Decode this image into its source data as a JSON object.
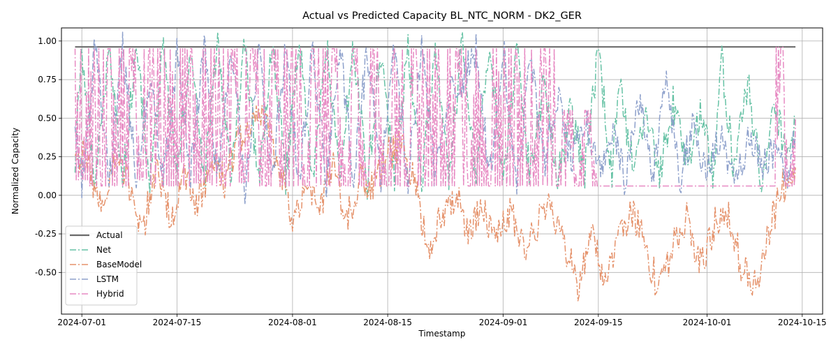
{
  "chart_data": {
    "type": "line",
    "title": "Actual vs Predicted Capacity BL_NTC_NORM - DK2_GER",
    "xlabel": "Timestamp",
    "ylabel": "Normalized Capacity",
    "x_range": [
      "2024-06-28",
      "2024-10-18"
    ],
    "ylim": [
      -0.77,
      1.085
    ],
    "x_ticks": [
      "2024-07-01",
      "2024-07-15",
      "2024-08-01",
      "2024-08-15",
      "2024-09-01",
      "2024-09-15",
      "2024-10-01",
      "2024-10-15"
    ],
    "y_ticks": [
      -0.5,
      -0.25,
      0.0,
      0.25,
      0.5,
      0.75,
      1.0
    ],
    "grid": true,
    "legend_position": "lower-left",
    "series": [
      {
        "name": "Actual",
        "style": "solid",
        "color": "#6b6b6b",
        "points": [
          [
            "2024-06-30",
            0.962
          ],
          [
            "2024-10-14",
            0.962
          ]
        ]
      },
      {
        "name": "Net",
        "style": "dashdot",
        "color": "#66c2a5",
        "points": [
          [
            "2024-06-30",
            0.2
          ],
          [
            "2024-07-01",
            0.95
          ],
          [
            "2024-07-03",
            0.1
          ],
          [
            "2024-07-05",
            0.98
          ],
          [
            "2024-07-07",
            0.08
          ],
          [
            "2024-07-09",
            0.97
          ],
          [
            "2024-07-11",
            0.1
          ],
          [
            "2024-07-13",
            0.95
          ],
          [
            "2024-07-15",
            0.1
          ],
          [
            "2024-07-17",
            0.92
          ],
          [
            "2024-07-19",
            0.08
          ],
          [
            "2024-07-21",
            0.99
          ],
          [
            "2024-07-23",
            0.1
          ],
          [
            "2024-07-25",
            0.97
          ],
          [
            "2024-07-27",
            0.08
          ],
          [
            "2024-07-29",
            0.97
          ],
          [
            "2024-07-31",
            0.12
          ],
          [
            "2024-08-02",
            1.0
          ],
          [
            "2024-08-04",
            0.08
          ],
          [
            "2024-08-06",
            0.97
          ],
          [
            "2024-08-08",
            0.1
          ],
          [
            "2024-08-10",
            0.97
          ],
          [
            "2024-08-12",
            0.08
          ],
          [
            "2024-08-14",
            0.95
          ],
          [
            "2024-08-16",
            0.1
          ],
          [
            "2024-08-18",
            0.95
          ],
          [
            "2024-08-20",
            0.1
          ],
          [
            "2024-08-22",
            0.9
          ],
          [
            "2024-08-24",
            0.08
          ],
          [
            "2024-08-26",
            1.0
          ],
          [
            "2024-08-28",
            0.1
          ],
          [
            "2024-08-30",
            0.95
          ],
          [
            "2024-09-01",
            0.08
          ],
          [
            "2024-09-03",
            0.9
          ],
          [
            "2024-09-05",
            0.1
          ],
          [
            "2024-09-07",
            0.75
          ],
          [
            "2024-09-09",
            0.1
          ],
          [
            "2024-09-11",
            0.55
          ],
          [
            "2024-09-13",
            0.15
          ],
          [
            "2024-09-15",
            0.95
          ],
          [
            "2024-09-17",
            0.1
          ],
          [
            "2024-09-18",
            0.75
          ],
          [
            "2024-09-20",
            0.2
          ],
          [
            "2024-09-22",
            0.55
          ],
          [
            "2024-09-24",
            0.15
          ],
          [
            "2024-09-26",
            0.6
          ],
          [
            "2024-09-28",
            0.2
          ],
          [
            "2024-09-30",
            0.55
          ],
          [
            "2024-10-02",
            0.1
          ],
          [
            "2024-10-03",
            0.92
          ],
          [
            "2024-10-05",
            0.15
          ],
          [
            "2024-10-07",
            0.75
          ],
          [
            "2024-10-09",
            0.1
          ],
          [
            "2024-10-11",
            0.55
          ],
          [
            "2024-10-13",
            0.2
          ],
          [
            "2024-10-14",
            0.45
          ]
        ]
      },
      {
        "name": "BaseModel",
        "style": "dashdot",
        "color": "#e5926b",
        "points": [
          [
            "2024-06-30",
            0.3
          ],
          [
            "2024-07-02",
            0.2
          ],
          [
            "2024-07-04",
            -0.1
          ],
          [
            "2024-07-06",
            0.25
          ],
          [
            "2024-07-08",
            0.05
          ],
          [
            "2024-07-10",
            -0.22
          ],
          [
            "2024-07-12",
            0.2
          ],
          [
            "2024-07-14",
            -0.15
          ],
          [
            "2024-07-16",
            0.1
          ],
          [
            "2024-07-18",
            -0.05
          ],
          [
            "2024-07-20",
            0.2
          ],
          [
            "2024-07-22",
            0.1
          ],
          [
            "2024-07-24",
            0.35
          ],
          [
            "2024-07-26",
            0.45
          ],
          [
            "2024-07-28",
            0.55
          ],
          [
            "2024-07-30",
            0.15
          ],
          [
            "2024-08-01",
            -0.15
          ],
          [
            "2024-08-03",
            0.1
          ],
          [
            "2024-08-05",
            -0.1
          ],
          [
            "2024-08-07",
            0.2
          ],
          [
            "2024-08-09",
            -0.15
          ],
          [
            "2024-08-11",
            0.1
          ],
          [
            "2024-08-13",
            0.05
          ],
          [
            "2024-08-15",
            0.25
          ],
          [
            "2024-08-17",
            0.35
          ],
          [
            "2024-08-19",
            0.05
          ],
          [
            "2024-08-21",
            -0.35
          ],
          [
            "2024-08-23",
            -0.1
          ],
          [
            "2024-08-25",
            0.0
          ],
          [
            "2024-08-27",
            -0.25
          ],
          [
            "2024-08-29",
            -0.05
          ],
          [
            "2024-08-31",
            -0.3
          ],
          [
            "2024-09-02",
            -0.1
          ],
          [
            "2024-09-04",
            -0.35
          ],
          [
            "2024-09-06",
            -0.2
          ],
          [
            "2024-09-08",
            -0.05
          ],
          [
            "2024-09-10",
            -0.3
          ],
          [
            "2024-09-12",
            -0.62
          ],
          [
            "2024-09-14",
            -0.2
          ],
          [
            "2024-09-16",
            -0.55
          ],
          [
            "2024-09-18",
            -0.3
          ],
          [
            "2024-09-20",
            -0.1
          ],
          [
            "2024-09-22",
            -0.35
          ],
          [
            "2024-09-24",
            -0.62
          ],
          [
            "2024-09-26",
            -0.3
          ],
          [
            "2024-09-28",
            -0.15
          ],
          [
            "2024-09-30",
            -0.45
          ],
          [
            "2024-10-02",
            -0.2
          ],
          [
            "2024-10-04",
            -0.1
          ],
          [
            "2024-10-06",
            -0.45
          ],
          [
            "2024-10-08",
            -0.6
          ],
          [
            "2024-10-10",
            -0.25
          ],
          [
            "2024-10-12",
            0.05
          ],
          [
            "2024-10-14",
            0.18
          ]
        ]
      },
      {
        "name": "LSTM",
        "style": "dashdot",
        "color": "#8da0cb",
        "points": [
          [
            "2024-06-30",
            0.48
          ],
          [
            "2024-07-01",
            0.08
          ],
          [
            "2024-07-03",
            0.97
          ],
          [
            "2024-07-05",
            0.1
          ],
          [
            "2024-07-07",
            0.95
          ],
          [
            "2024-07-09",
            0.12
          ],
          [
            "2024-07-11",
            0.8
          ],
          [
            "2024-07-13",
            0.1
          ],
          [
            "2024-07-15",
            0.9
          ],
          [
            "2024-07-17",
            0.15
          ],
          [
            "2024-07-19",
            0.95
          ],
          [
            "2024-07-21",
            0.1
          ],
          [
            "2024-07-23",
            0.95
          ],
          [
            "2024-07-25",
            0.0
          ],
          [
            "2024-07-27",
            0.95
          ],
          [
            "2024-07-29",
            0.1
          ],
          [
            "2024-07-31",
            0.97
          ],
          [
            "2024-08-02",
            0.1
          ],
          [
            "2024-08-04",
            0.95
          ],
          [
            "2024-08-06",
            0.08
          ],
          [
            "2024-08-08",
            0.97
          ],
          [
            "2024-08-10",
            0.1
          ],
          [
            "2024-08-12",
            0.95
          ],
          [
            "2024-08-14",
            0.1
          ],
          [
            "2024-08-16",
            0.95
          ],
          [
            "2024-08-18",
            0.1
          ],
          [
            "2024-08-20",
            0.95
          ],
          [
            "2024-08-22",
            0.1
          ],
          [
            "2024-08-24",
            0.68
          ],
          [
            "2024-08-26",
            0.75
          ],
          [
            "2024-08-28",
            0.95
          ],
          [
            "2024-08-30",
            0.1
          ],
          [
            "2024-09-01",
            0.95
          ],
          [
            "2024-09-03",
            0.1
          ],
          [
            "2024-09-05",
            0.9
          ],
          [
            "2024-09-07",
            0.2
          ],
          [
            "2024-09-09",
            0.65
          ],
          [
            "2024-09-11",
            0.2
          ],
          [
            "2024-09-13",
            0.5
          ],
          [
            "2024-09-15",
            0.15
          ],
          [
            "2024-09-17",
            0.4
          ],
          [
            "2024-09-19",
            0.1
          ],
          [
            "2024-09-21",
            0.6
          ],
          [
            "2024-09-23",
            0.08
          ],
          [
            "2024-09-25",
            0.75
          ],
          [
            "2024-09-27",
            0.1
          ],
          [
            "2024-09-29",
            0.45
          ],
          [
            "2024-10-01",
            0.15
          ],
          [
            "2024-10-03",
            0.4
          ],
          [
            "2024-10-05",
            0.1
          ],
          [
            "2024-10-07",
            0.35
          ],
          [
            "2024-10-09",
            0.2
          ],
          [
            "2024-10-11",
            0.3
          ],
          [
            "2024-10-13",
            0.1
          ],
          [
            "2024-10-14",
            0.4
          ]
        ]
      },
      {
        "name": "Hybrid",
        "style": "dashdot",
        "color": "#e78ac3",
        "points": [
          [
            "2024-06-30",
            0.95
          ],
          [
            "2024-07-01",
            0.1
          ],
          [
            "2024-07-02",
            0.95
          ],
          [
            "2024-07-04",
            0.06
          ],
          [
            "2024-07-05",
            0.95
          ],
          [
            "2024-07-07",
            0.06
          ],
          [
            "2024-07-08",
            0.95
          ],
          [
            "2024-07-10",
            0.1
          ],
          [
            "2024-07-11",
            0.95
          ],
          [
            "2024-07-13",
            0.06
          ],
          [
            "2024-07-14",
            0.95
          ],
          [
            "2024-07-16",
            0.06
          ],
          [
            "2024-07-17",
            0.95
          ],
          [
            "2024-07-19",
            0.08
          ],
          [
            "2024-07-20",
            0.95
          ],
          [
            "2024-07-22",
            0.06
          ],
          [
            "2024-07-23",
            0.95
          ],
          [
            "2024-07-25",
            0.08
          ],
          [
            "2024-07-26",
            0.95
          ],
          [
            "2024-07-28",
            0.06
          ],
          [
            "2024-07-29",
            0.95
          ],
          [
            "2024-07-31",
            0.06
          ],
          [
            "2024-08-01",
            0.95
          ],
          [
            "2024-08-03",
            0.06
          ],
          [
            "2024-08-04",
            0.95
          ],
          [
            "2024-08-06",
            0.06
          ],
          [
            "2024-08-07",
            0.95
          ],
          [
            "2024-08-09",
            0.06
          ],
          [
            "2024-08-10",
            0.95
          ],
          [
            "2024-08-12",
            0.06
          ],
          [
            "2024-08-13",
            0.95
          ],
          [
            "2024-08-15",
            0.06
          ],
          [
            "2024-08-16",
            0.95
          ],
          [
            "2024-08-18",
            0.06
          ],
          [
            "2024-08-19",
            0.95
          ],
          [
            "2024-08-21",
            0.06
          ],
          [
            "2024-08-22",
            0.95
          ],
          [
            "2024-08-24",
            0.06
          ],
          [
            "2024-08-25",
            0.95
          ],
          [
            "2024-08-27",
            0.06
          ],
          [
            "2024-08-28",
            0.95
          ],
          [
            "2024-08-30",
            0.06
          ],
          [
            "2024-08-31",
            0.95
          ],
          [
            "2024-09-02",
            0.06
          ],
          [
            "2024-09-03",
            0.95
          ],
          [
            "2024-09-05",
            0.06
          ],
          [
            "2024-09-07",
            0.95
          ],
          [
            "2024-09-09",
            0.06
          ],
          [
            "2024-09-10",
            0.55
          ],
          [
            "2024-09-12",
            0.06
          ],
          [
            "2024-09-13",
            0.55
          ],
          [
            "2024-09-15",
            0.06
          ],
          [
            "2024-09-30",
            0.06
          ],
          [
            "2024-10-11",
            0.06
          ],
          [
            "2024-10-12",
            0.96
          ],
          [
            "2024-10-13",
            0.06
          ],
          [
            "2024-10-14",
            0.5
          ]
        ]
      }
    ]
  }
}
